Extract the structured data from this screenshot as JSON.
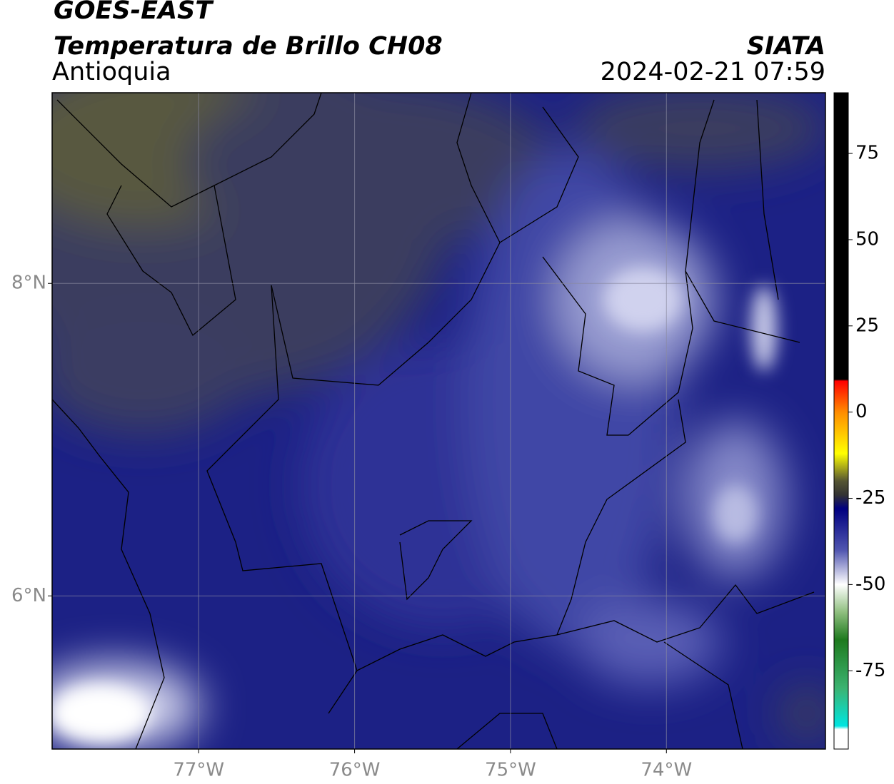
{
  "header": {
    "satellite": "GOES-EAST",
    "product": "Temperatura de Brillo CH08",
    "region": "Antioquia",
    "source": "SIATA",
    "datetime": "2024-02-21 07:59"
  },
  "map": {
    "xlim": [
      -77.94,
      -72.98
    ],
    "ylim": [
      5.02,
      9.22
    ],
    "xticks": [
      {
        "value": -77,
        "label": "77°W"
      },
      {
        "value": -76,
        "label": "76°W"
      },
      {
        "value": -75,
        "label": "75°W"
      },
      {
        "value": -74,
        "label": "74°W"
      }
    ],
    "yticks": [
      {
        "value": 8,
        "label": "8°N"
      },
      {
        "value": 6,
        "label": "6°N"
      }
    ],
    "grid": true
  },
  "colorbar": {
    "lim": [
      -97.7,
      92.6
    ],
    "ticks": [
      75,
      50,
      25,
      0,
      -25,
      -50,
      -75
    ],
    "stops": [
      {
        "value": 92.6,
        "color": "#000000"
      },
      {
        "value": 9.5,
        "color": "#000000"
      },
      {
        "value": 9,
        "color": "#ff0000"
      },
      {
        "value": 0,
        "color": "#ff8c00"
      },
      {
        "value": -12,
        "color": "#ffff00"
      },
      {
        "value": -20,
        "color": "#555533"
      },
      {
        "value": -24,
        "color": "#333333"
      },
      {
        "value": -28,
        "color": "#000080"
      },
      {
        "value": -40,
        "color": "#5055b0"
      },
      {
        "value": -50,
        "color": "#ffffff"
      },
      {
        "value": -58,
        "color": "#8fbf7f"
      },
      {
        "value": -66,
        "color": "#1e7a1e"
      },
      {
        "value": -80,
        "color": "#3cb371"
      },
      {
        "value": -91,
        "color": "#00e5e0"
      },
      {
        "value": -92,
        "color": "#ffffff"
      },
      {
        "value": -97.7,
        "color": "#ffffff"
      }
    ]
  }
}
